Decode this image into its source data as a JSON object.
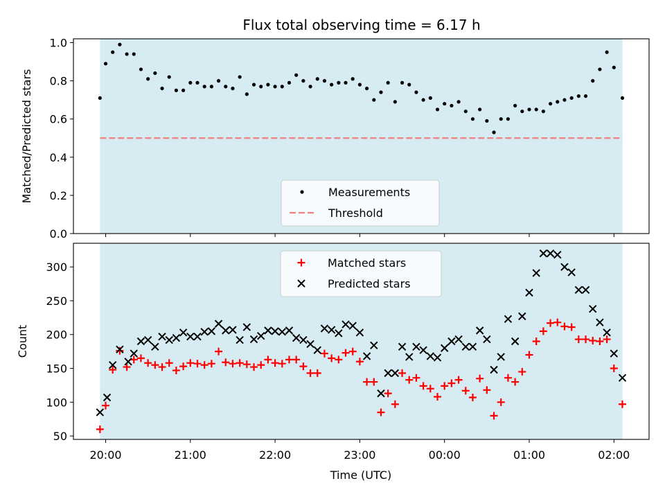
{
  "chart_data": [
    {
      "type": "scatter",
      "title": "Flux total observing time = 6.17 h",
      "xlabel": "",
      "ylabel": "Matched/Predicted stars",
      "ylim": [
        0,
        1.02
      ],
      "yticks": [
        "0.0",
        "0.2",
        "0.4",
        "0.6",
        "0.8",
        "1.0"
      ],
      "x_is_time": true,
      "shaded_interval": [
        "19:56",
        "02:06"
      ],
      "threshold": 0.5,
      "legend": {
        "placement": "lower center",
        "entries": [
          "Measurements",
          "Threshold"
        ]
      },
      "series": [
        {
          "name": "Measurements",
          "color": "#000000",
          "marker": "dot",
          "x": [
            "19:56",
            "20:00",
            "20:05",
            "20:10",
            "20:15",
            "20:20",
            "20:25",
            "20:30",
            "20:35",
            "20:40",
            "20:45",
            "20:50",
            "20:55",
            "21:00",
            "21:05",
            "21:10",
            "21:15",
            "21:20",
            "21:25",
            "21:30",
            "21:35",
            "21:40",
            "21:45",
            "21:50",
            "21:55",
            "22:00",
            "22:05",
            "22:10",
            "22:15",
            "22:20",
            "22:25",
            "22:30",
            "22:35",
            "22:40",
            "22:45",
            "22:50",
            "22:55",
            "23:00",
            "23:05",
            "23:10",
            "23:15",
            "23:20",
            "23:25",
            "23:30",
            "23:35",
            "23:40",
            "23:45",
            "23:50",
            "23:55",
            "00:00",
            "00:05",
            "00:10",
            "00:15",
            "00:20",
            "00:25",
            "00:30",
            "00:35",
            "00:40",
            "00:45",
            "00:50",
            "00:55",
            "01:00",
            "01:05",
            "01:10",
            "01:15",
            "01:20",
            "01:25",
            "01:30",
            "01:35",
            "01:40",
            "01:45",
            "01:50",
            "01:55",
            "02:00",
            "02:06"
          ],
          "y": [
            0.71,
            0.89,
            0.95,
            0.99,
            0.94,
            0.94,
            0.86,
            0.81,
            0.84,
            0.76,
            0.82,
            0.75,
            0.75,
            0.79,
            0.79,
            0.77,
            0.77,
            0.8,
            0.77,
            0.76,
            0.82,
            0.73,
            0.78,
            0.77,
            0.78,
            0.77,
            0.77,
            0.79,
            0.83,
            0.8,
            0.77,
            0.81,
            0.8,
            0.78,
            0.79,
            0.79,
            0.81,
            0.78,
            0.76,
            0.7,
            0.74,
            0.79,
            0.69,
            0.79,
            0.78,
            0.74,
            0.7,
            0.71,
            0.65,
            0.68,
            0.67,
            0.69,
            0.64,
            0.6,
            0.65,
            0.59,
            0.53,
            0.6,
            0.6,
            0.67,
            0.64,
            0.65,
            0.65,
            0.64,
            0.68,
            0.69,
            0.7,
            0.71,
            0.72,
            0.72,
            0.8,
            0.86,
            0.95,
            0.87,
            0.71
          ]
        },
        {
          "name": "Threshold",
          "color": "#f08080",
          "marker": "dashed-line",
          "x": [
            "19:56",
            "02:06"
          ],
          "y": [
            0.5,
            0.5
          ]
        }
      ]
    },
    {
      "type": "scatter",
      "title": "",
      "xlabel": "Time (UTC)",
      "ylabel": "Count",
      "ylim": [
        45,
        335
      ],
      "yticks": [
        "50",
        "100",
        "150",
        "200",
        "250",
        "300"
      ],
      "xticks": [
        "20:00",
        "21:00",
        "22:00",
        "23:00",
        "00:00",
        "01:00",
        "02:00"
      ],
      "x_is_time": true,
      "shaded_interval": [
        "19:56",
        "02:06"
      ],
      "legend": {
        "placement": "upper center",
        "entries": [
          "Matched stars",
          "Predicted stars"
        ]
      },
      "series": [
        {
          "name": "Matched stars",
          "color": "#ff0000",
          "marker": "plus",
          "x": [
            "19:56",
            "20:00",
            "20:05",
            "20:10",
            "20:15",
            "20:20",
            "20:25",
            "20:30",
            "20:35",
            "20:40",
            "20:45",
            "20:50",
            "20:55",
            "21:00",
            "21:05",
            "21:10",
            "21:15",
            "21:20",
            "21:25",
            "21:30",
            "21:35",
            "21:40",
            "21:45",
            "21:50",
            "21:55",
            "22:00",
            "22:05",
            "22:10",
            "22:15",
            "22:20",
            "22:25",
            "22:30",
            "22:35",
            "22:40",
            "22:45",
            "22:50",
            "22:55",
            "23:00",
            "23:05",
            "23:10",
            "23:15",
            "23:20",
            "23:25",
            "23:30",
            "23:35",
            "23:40",
            "23:45",
            "23:50",
            "23:55",
            "00:00",
            "00:05",
            "00:10",
            "00:15",
            "00:20",
            "00:25",
            "00:30",
            "00:35",
            "00:40",
            "00:45",
            "00:50",
            "00:55",
            "01:00",
            "01:05",
            "01:10",
            "01:15",
            "01:20",
            "01:25",
            "01:30",
            "01:35",
            "01:40",
            "01:45",
            "01:50",
            "01:55",
            "02:00",
            "02:06"
          ],
          "y": [
            60,
            95,
            148,
            176,
            152,
            163,
            165,
            158,
            155,
            152,
            158,
            147,
            153,
            158,
            157,
            155,
            157,
            175,
            159,
            157,
            158,
            156,
            152,
            155,
            163,
            158,
            157,
            163,
            163,
            153,
            143,
            143,
            172,
            165,
            163,
            173,
            175,
            160,
            130,
            130,
            85,
            113,
            97,
            143,
            133,
            136,
            124,
            120,
            108,
            124,
            128,
            133,
            117,
            107,
            135,
            118,
            80,
            100,
            136,
            130,
            145,
            170,
            190,
            205,
            217,
            218,
            212,
            211,
            193,
            193,
            191,
            190,
            193,
            150,
            97
          ]
        },
        {
          "name": "Predicted stars",
          "color": "#000000",
          "marker": "x",
          "x": [
            "19:56",
            "20:01",
            "20:05",
            "20:10",
            "20:16",
            "20:20",
            "20:25",
            "20:30",
            "20:35",
            "20:40",
            "20:45",
            "20:50",
            "20:55",
            "21:00",
            "21:05",
            "21:10",
            "21:15",
            "21:20",
            "21:25",
            "21:30",
            "21:35",
            "21:40",
            "21:45",
            "21:50",
            "21:55",
            "22:00",
            "22:05",
            "22:10",
            "22:15",
            "22:20",
            "22:25",
            "22:30",
            "22:35",
            "22:40",
            "22:45",
            "22:50",
            "22:55",
            "23:00",
            "23:05",
            "23:10",
            "23:15",
            "23:20",
            "23:25",
            "23:30",
            "23:35",
            "23:40",
            "23:45",
            "23:50",
            "23:55",
            "00:00",
            "00:05",
            "00:10",
            "00:15",
            "00:20",
            "00:25",
            "00:30",
            "00:35",
            "00:40",
            "00:45",
            "00:50",
            "00:55",
            "01:00",
            "01:05",
            "01:10",
            "01:15",
            "01:20",
            "01:25",
            "01:30",
            "01:35",
            "01:40",
            "01:45",
            "01:50",
            "01:55",
            "02:00",
            "02:06"
          ],
          "y": [
            85,
            107,
            155,
            178,
            160,
            172,
            190,
            192,
            182,
            197,
            192,
            195,
            203,
            197,
            197,
            204,
            205,
            216,
            206,
            207,
            192,
            211,
            193,
            198,
            206,
            205,
            204,
            206,
            195,
            192,
            186,
            177,
            209,
            207,
            202,
            215,
            213,
            203,
            168,
            184,
            113,
            143,
            143,
            182,
            167,
            182,
            177,
            168,
            166,
            180,
            190,
            193,
            182,
            182,
            206,
            193,
            148,
            167,
            223,
            190,
            227,
            262,
            291,
            320,
            320,
            318,
            300,
            292,
            266,
            266,
            238,
            218,
            203,
            172,
            136
          ]
        }
      ]
    }
  ]
}
